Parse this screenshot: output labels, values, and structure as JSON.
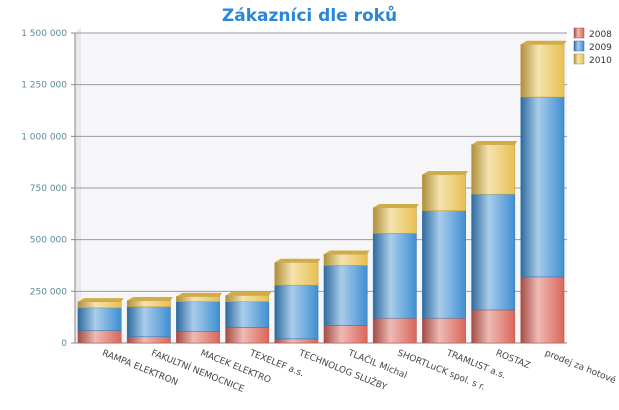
{
  "chart_data": {
    "type": "bar",
    "stacked": true,
    "title": "Zákazníci dle roků",
    "xlabel": "",
    "ylabel": "",
    "ylim": [
      0,
      1500000
    ],
    "yticks": [
      0,
      250000,
      500000,
      750000,
      1000000,
      1250000,
      1500000
    ],
    "ytick_labels": [
      "0",
      "250 000",
      "500 000",
      "750 000",
      "1 000 000",
      "1 250 000",
      "1 500 000"
    ],
    "grid": true,
    "legend_position": "top-right",
    "categories": [
      "RAMPA ELEKTRON",
      "FAKULTNÍ NEMOCNICE",
      "MACEK ELEKTRO",
      "TEXELEF a.s.",
      "TECHNOLOG SLUŽBY",
      "TLAČIL Michal",
      "SHORTLuCK spol. s r.",
      "TRAMLIST a.s.",
      "ROSTAZ",
      "prodej za hotové"
    ],
    "series": [
      {
        "name": "2008",
        "color": "#d9665a",
        "values": [
          60000,
          30000,
          55000,
          75000,
          20000,
          85000,
          120000,
          120000,
          160000,
          320000
        ]
      },
      {
        "name": "2009",
        "color": "#3f8fd2",
        "values": [
          110000,
          145000,
          145000,
          125000,
          260000,
          290000,
          410000,
          520000,
          560000,
          870000
        ]
      },
      {
        "name": "2010",
        "color": "#e8c050",
        "values": [
          30000,
          30000,
          25000,
          30000,
          110000,
          55000,
          125000,
          175000,
          240000,
          255000
        ]
      }
    ]
  }
}
